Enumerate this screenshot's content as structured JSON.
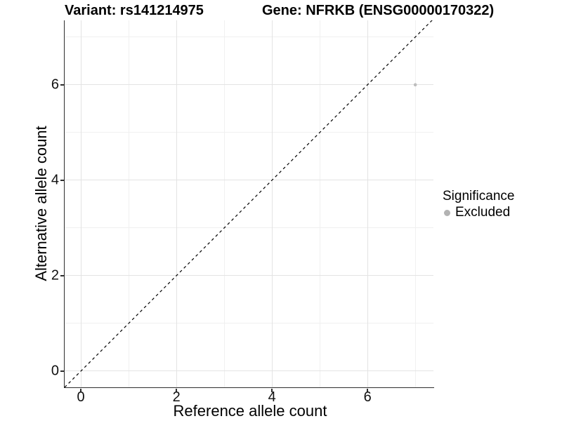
{
  "chart_data": {
    "type": "scatter",
    "title_left": "Variant: rs141214975",
    "title_right": "Gene: NFRKB (ENSG00000170322)",
    "xlabel": "Reference allele count",
    "ylabel": "Alternative allele count",
    "xlim": [
      -0.34,
      7.38
    ],
    "ylim": [
      -0.34,
      7.35
    ],
    "x_major_ticks": [
      0,
      2,
      4,
      6
    ],
    "y_major_ticks": [
      0,
      2,
      4,
      6
    ],
    "x_minor_gridlines": [
      1,
      3,
      5,
      7
    ],
    "y_minor_gridlines": [
      1,
      3,
      5,
      7
    ],
    "grid": {
      "visible": true,
      "major_color": "#e3e3e3",
      "minor_color": "#f0f0f0"
    },
    "axis_color": "#2e2e2e",
    "background": "#ffffff",
    "series": [
      {
        "name": "Excluded",
        "color": "#bdbdbd",
        "marker": "circle",
        "points": [
          {
            "x": 7,
            "y": 6
          }
        ]
      }
    ],
    "reference_line": {
      "kind": "identity",
      "equation": "y = x",
      "linetype": "dashed",
      "color": "#000000"
    },
    "legend": {
      "title": "Significance",
      "position": "right",
      "items": [
        {
          "label": "Excluded",
          "color": "#b3b3b3"
        }
      ]
    }
  }
}
